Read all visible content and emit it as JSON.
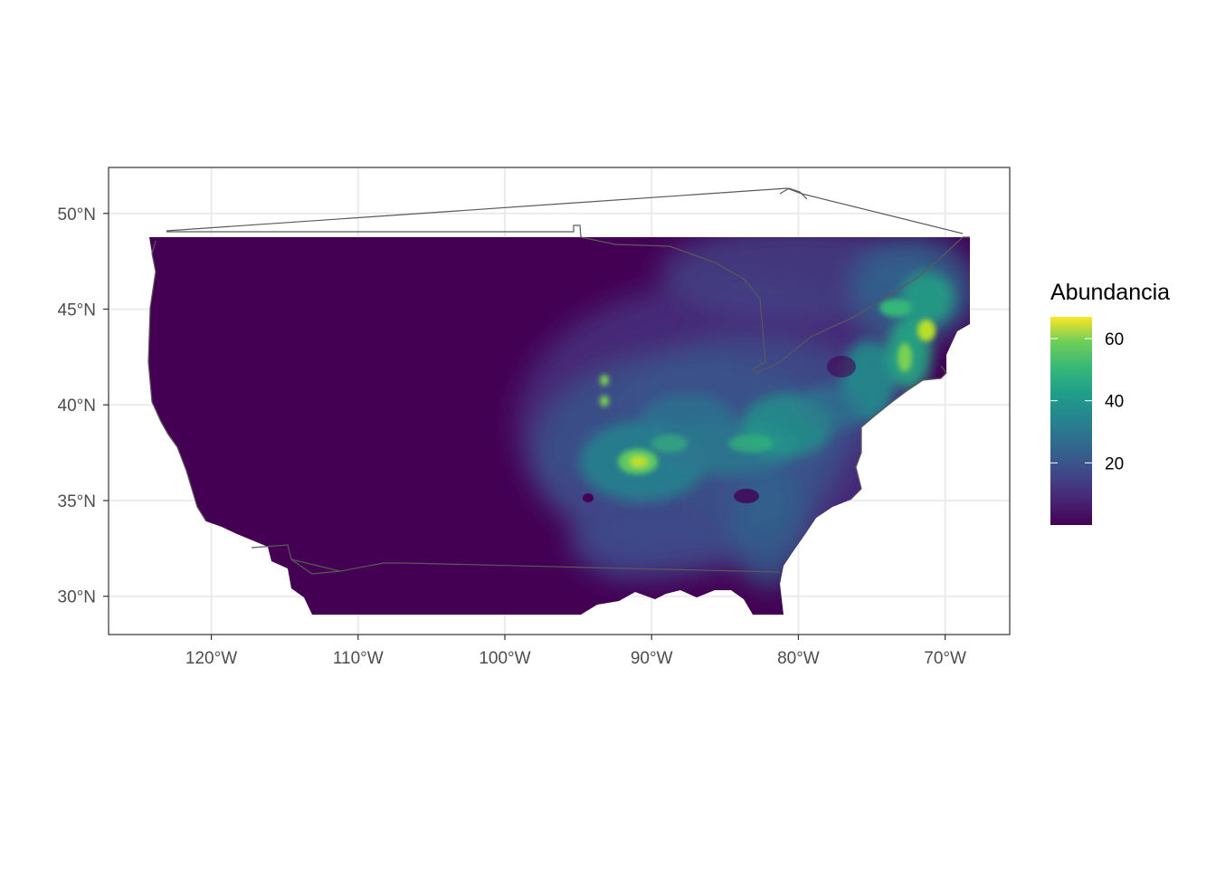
{
  "chart_data": {
    "type": "heatmap",
    "title": "",
    "xlabel": "",
    "ylabel": "",
    "x_axis": {
      "ticks": [
        -120,
        -110,
        -100,
        -90,
        -80,
        -70
      ],
      "tick_labels": [
        "120°W",
        "110°W",
        "100°W",
        "90°W",
        "80°W",
        "70°W"
      ],
      "range": [
        -127,
        -65.6
      ]
    },
    "y_axis": {
      "ticks": [
        30,
        35,
        40,
        45,
        50
      ],
      "tick_labels": [
        "30°N",
        "35°N",
        "40°N",
        "45°N",
        "50°N"
      ],
      "range": [
        28.0,
        52.4
      ]
    },
    "grid": true,
    "legend": {
      "title": "Abundancia",
      "placement": "right",
      "colormap": "viridis",
      "range": [
        0,
        67
      ],
      "ticks": [
        20,
        40,
        60
      ],
      "tick_labels": [
        "20",
        "40",
        "60"
      ]
    },
    "hotspots": [
      {
        "lon": -90.8,
        "lat": 37.0,
        "value": 55
      },
      {
        "lon": -71.2,
        "lat": 43.9,
        "value": 65
      },
      {
        "lon": -72.8,
        "lat": 42.5,
        "value": 55
      },
      {
        "lon": -93.1,
        "lat": 41.3,
        "value": 50
      },
      {
        "lon": -93.2,
        "lat": 40.2,
        "value": 48
      }
    ],
    "colors": {
      "low": "#440154",
      "mid": "#21918c",
      "high": "#fde725",
      "panel_border": "#333333",
      "grid": "#ebebeb",
      "boundary": "#5a5a5a"
    }
  }
}
